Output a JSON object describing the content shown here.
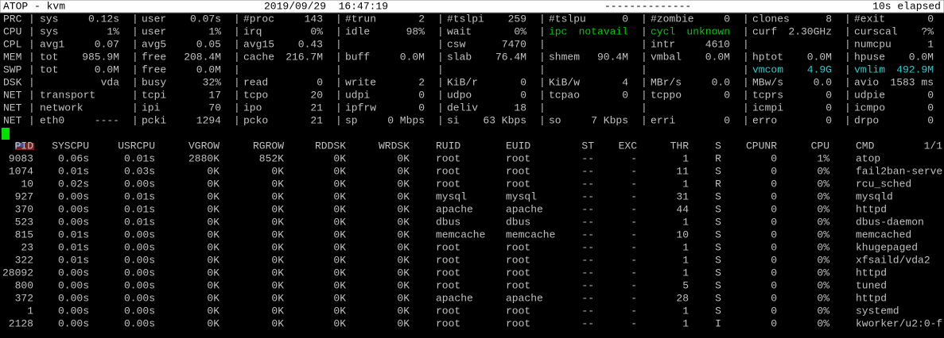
{
  "header": {
    "host": "ATOP - kvm",
    "datetime": "2019/09/29  16:47:19",
    "dashes": "--------------",
    "elapsed": "10s elapsed"
  },
  "system": [
    {
      "label": "PRC",
      "fields": [
        {
          "name": "sys",
          "value": "0.12s"
        },
        {
          "name": "user",
          "value": "0.07s"
        },
        {
          "name": "#proc",
          "value": "143"
        },
        {
          "name": "#trun",
          "value": "2"
        },
        {
          "name": "#tslpi",
          "value": "259"
        },
        {
          "name": "#tslpu",
          "value": "0"
        },
        {
          "name": "#zombie",
          "value": "0"
        },
        {
          "name": "clones",
          "value": "8"
        },
        {
          "name": "#exit",
          "value": "0"
        }
      ]
    },
    {
      "label": "CPU",
      "fields": [
        {
          "name": "sys",
          "value": "1%"
        },
        {
          "name": "user",
          "value": "1%"
        },
        {
          "name": "irq",
          "value": "0%"
        },
        {
          "name": "idle",
          "value": "98%"
        },
        {
          "name": "wait",
          "value": "0%"
        },
        {
          "name": "ipc",
          "value": "notavail",
          "color": "#00c800"
        },
        {
          "name": "cycl",
          "value": "unknown",
          "color": "#00c800"
        },
        {
          "name": "curf",
          "value": "2.30GHz"
        },
        {
          "name": "curscal",
          "value": "?%"
        }
      ]
    },
    {
      "label": "CPL",
      "fields": [
        {
          "name": "avg1",
          "value": "0.07"
        },
        {
          "name": "avg5",
          "value": "0.05"
        },
        {
          "name": "avg15",
          "value": "0.43"
        },
        null,
        {
          "name": "csw",
          "value": "7470"
        },
        null,
        {
          "name": "intr",
          "value": "4610"
        },
        null,
        {
          "name": "numcpu",
          "value": "1"
        }
      ]
    },
    {
      "label": "MEM",
      "fields": [
        {
          "name": "tot",
          "value": "985.9M"
        },
        {
          "name": "free",
          "value": "208.4M"
        },
        {
          "name": "cache",
          "value": "216.7M"
        },
        {
          "name": "buff",
          "value": "0.0M"
        },
        {
          "name": "slab",
          "value": "76.4M"
        },
        {
          "name": "shmem",
          "value": "90.4M"
        },
        {
          "name": "vmbal",
          "value": "0.0M"
        },
        {
          "name": "hptot",
          "value": "0.0M"
        },
        {
          "name": "hpuse",
          "value": "0.0M"
        }
      ]
    },
    {
      "label": "SWP",
      "fields": [
        {
          "name": "tot",
          "value": "0.0M"
        },
        {
          "name": "free",
          "value": "0.0M"
        },
        null,
        null,
        null,
        null,
        null,
        {
          "name": "vmcom",
          "value": "4.9G",
          "color": "#30c8c8"
        },
        {
          "name": "vmlim",
          "value": "492.9M",
          "color": "#30c8c8"
        }
      ]
    },
    {
      "label": "DSK",
      "fields": [
        {
          "value": "vda"
        },
        {
          "name": "busy",
          "value": "32%"
        },
        {
          "name": "read",
          "value": "0"
        },
        {
          "name": "write",
          "value": "2"
        },
        {
          "name": "KiB/r",
          "value": "0"
        },
        {
          "name": "KiB/w",
          "value": "4"
        },
        {
          "name": "MBr/s",
          "value": "0.0"
        },
        {
          "name": "MBw/s",
          "value": "0.0"
        },
        {
          "name": "avio",
          "value": "1583 ms"
        }
      ]
    },
    {
      "label": "NET",
      "fields": [
        {
          "name": "transport"
        },
        {
          "name": "tcpi",
          "value": "17"
        },
        {
          "name": "tcpo",
          "value": "20"
        },
        {
          "name": "udpi",
          "value": "0"
        },
        {
          "name": "udpo",
          "value": "0"
        },
        {
          "name": "tcpao",
          "value": "0"
        },
        {
          "name": "tcppo",
          "value": "0"
        },
        {
          "name": "tcprs",
          "value": "0"
        },
        {
          "name": "udpie",
          "value": "0"
        }
      ]
    },
    {
      "label": "NET",
      "fields": [
        {
          "name": "network"
        },
        {
          "name": "ipi",
          "value": "70"
        },
        {
          "name": "ipo",
          "value": "21"
        },
        {
          "name": "ipfrw",
          "value": "0"
        },
        {
          "name": "deliv",
          "value": "18"
        },
        null,
        null,
        {
          "name": "icmpi",
          "value": "0"
        },
        {
          "name": "icmpo",
          "value": "0"
        }
      ]
    },
    {
      "label": "NET",
      "fields": [
        {
          "name": "eth0",
          "value": "----"
        },
        {
          "name": "pcki",
          "value": "1294"
        },
        {
          "name": "pcko",
          "value": "21"
        },
        {
          "name": "sp",
          "value": "0 Mbps"
        },
        {
          "name": "si",
          "value": "63 Kbps"
        },
        {
          "name": "so",
          "value": "7 Kbps"
        },
        {
          "name": "erri",
          "value": "0"
        },
        {
          "name": "erro",
          "value": "0"
        },
        {
          "name": "drpo",
          "value": "0"
        }
      ]
    }
  ],
  "processes": {
    "columns": [
      "PID",
      "SYSCPU",
      "USRCPU",
      "VGROW",
      "RGROW",
      "RDDSK",
      "WRDSK",
      "RUID",
      "EUID",
      "ST",
      "EXC",
      "THR",
      "S",
      "CPUNR",
      "CPU",
      "CMD"
    ],
    "page": "1/1",
    "rows": [
      [
        "9083",
        "0.06s",
        "0.01s",
        "2880K",
        "852K",
        "0K",
        "0K",
        "root",
        "root",
        "--",
        "-",
        "1",
        "R",
        "0",
        "1%",
        "atop"
      ],
      [
        "1074",
        "0.01s",
        "0.03s",
        "0K",
        "0K",
        "0K",
        "0K",
        "root",
        "root",
        "--",
        "-",
        "11",
        "S",
        "0",
        "0%",
        "fail2ban-serve"
      ],
      [
        "10",
        "0.02s",
        "0.00s",
        "0K",
        "0K",
        "0K",
        "0K",
        "root",
        "root",
        "--",
        "-",
        "1",
        "R",
        "0",
        "0%",
        "rcu_sched"
      ],
      [
        "927",
        "0.00s",
        "0.01s",
        "0K",
        "0K",
        "0K",
        "0K",
        "mysql",
        "mysql",
        "--",
        "-",
        "31",
        "S",
        "0",
        "0%",
        "mysqld"
      ],
      [
        "370",
        "0.00s",
        "0.01s",
        "0K",
        "0K",
        "0K",
        "0K",
        "apache",
        "apache",
        "--",
        "-",
        "44",
        "S",
        "0",
        "0%",
        "httpd"
      ],
      [
        "523",
        "0.00s",
        "0.01s",
        "0K",
        "0K",
        "0K",
        "0K",
        "dbus",
        "dbus",
        "--",
        "-",
        "1",
        "S",
        "0",
        "0%",
        "dbus-daemon"
      ],
      [
        "815",
        "0.01s",
        "0.00s",
        "0K",
        "0K",
        "0K",
        "0K",
        "memcache",
        "memcache",
        "--",
        "-",
        "10",
        "S",
        "0",
        "0%",
        "memcached"
      ],
      [
        "23",
        "0.01s",
        "0.00s",
        "0K",
        "0K",
        "0K",
        "0K",
        "root",
        "root",
        "--",
        "-",
        "1",
        "S",
        "0",
        "0%",
        "khugepaged"
      ],
      [
        "322",
        "0.01s",
        "0.00s",
        "0K",
        "0K",
        "0K",
        "0K",
        "root",
        "root",
        "--",
        "-",
        "1",
        "S",
        "0",
        "0%",
        "xfsaild/vda2"
      ],
      [
        "28092",
        "0.00s",
        "0.00s",
        "0K",
        "0K",
        "0K",
        "0K",
        "root",
        "root",
        "--",
        "-",
        "1",
        "S",
        "0",
        "0%",
        "httpd"
      ],
      [
        "800",
        "0.00s",
        "0.00s",
        "0K",
        "0K",
        "0K",
        "0K",
        "root",
        "root",
        "--",
        "-",
        "5",
        "S",
        "0",
        "0%",
        "tuned"
      ],
      [
        "372",
        "0.00s",
        "0.00s",
        "0K",
        "0K",
        "0K",
        "0K",
        "apache",
        "apache",
        "--",
        "-",
        "28",
        "S",
        "0",
        "0%",
        "httpd"
      ],
      [
        "1",
        "0.00s",
        "0.00s",
        "0K",
        "0K",
        "0K",
        "0K",
        "root",
        "root",
        "--",
        "-",
        "1",
        "S",
        "0",
        "0%",
        "systemd"
      ],
      [
        "2128",
        "0.00s",
        "0.00s",
        "0K",
        "0K",
        "0K",
        "0K",
        "root",
        "root",
        "--",
        "-",
        "1",
        "I",
        "0",
        "0%",
        "kworker/u2:0-f"
      ]
    ]
  }
}
